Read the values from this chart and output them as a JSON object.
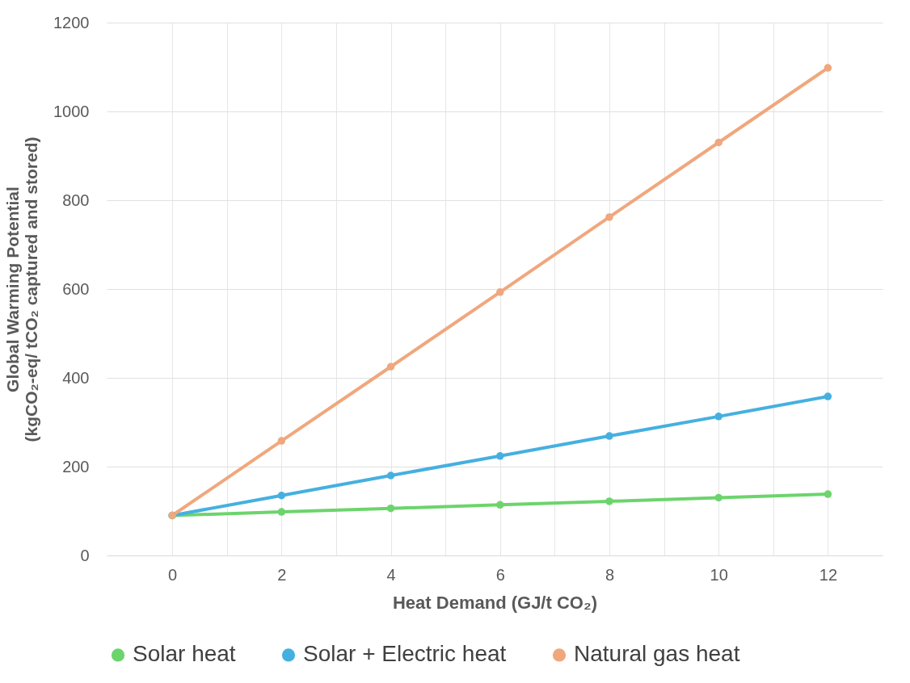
{
  "chart_data": {
    "type": "line",
    "xlabel": "Heat Demand (GJ/t CO₂)",
    "ylabel": "Global Warming Potential\n(kgCO₂-eq/ tCO₂ captured and stored)",
    "x": [
      0,
      2,
      4,
      6,
      8,
      10,
      12
    ],
    "series": [
      {
        "name": "Solar heat",
        "color": "#6cd46c",
        "values": [
          90,
          98,
          106,
          114,
          122,
          130,
          138
        ]
      },
      {
        "name": "Solar + Electric heat",
        "color": "#45b0e0",
        "values": [
          90,
          135,
          180,
          224,
          269,
          313,
          358
        ]
      },
      {
        "name": "Natural gas heat",
        "color": "#f0a77d",
        "values": [
          90,
          258,
          425,
          593,
          762,
          930,
          1098
        ]
      }
    ],
    "xlim": [
      -1.2,
      13
    ],
    "xticks": [
      0,
      {
        "value": 1,
        "label": null
      },
      2,
      {
        "value": 3,
        "label": null
      },
      4,
      {
        "value": 5,
        "label": null
      },
      6,
      {
        "value": 7,
        "label": null
      },
      8,
      {
        "value": 9,
        "label": null
      },
      10,
      {
        "value": 11,
        "label": null
      },
      12
    ],
    "ylim": [
      0,
      1200
    ],
    "yticks": [
      0,
      200,
      400,
      600,
      800,
      1000,
      1200
    ],
    "grid": true,
    "legend": "bottom",
    "marker": "circle",
    "line_style": "solid"
  }
}
